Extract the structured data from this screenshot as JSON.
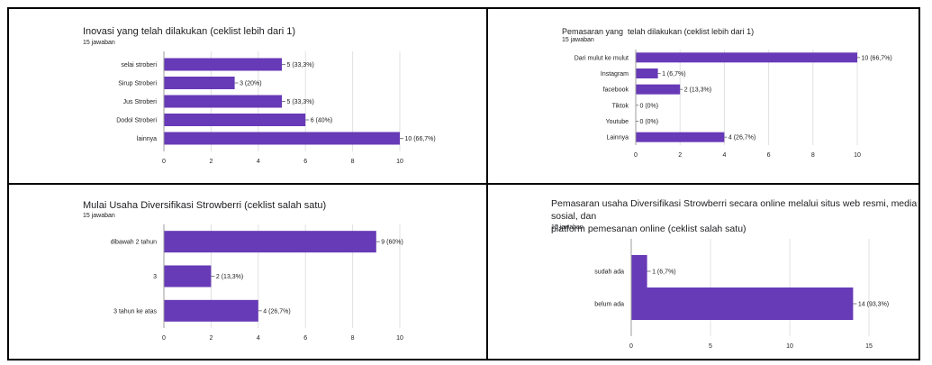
{
  "colors": {
    "bar": "#673ab7",
    "grid": "#e0e0e0",
    "text": "#202124"
  },
  "charts": [
    {
      "title": "Inovasi yang telah dilakukan (ceklist lebih dari 1)",
      "subtitle": "15 jawaban",
      "chart_data": {
        "type": "bar",
        "orientation": "horizontal",
        "categories": [
          "selai stroberi",
          "Sirup Stroberi",
          "Jus Stroberi",
          "Dodol Stroberi",
          "lainnya"
        ],
        "values": [
          5,
          3,
          5,
          6,
          10
        ],
        "data_labels": [
          "5 (33,3%)",
          "3 (20%)",
          "5 (33,3%)",
          "6 (40%)",
          "10 (66,7%)"
        ],
        "xlim": [
          0,
          10
        ],
        "xticks": [
          0,
          2,
          4,
          6,
          8,
          10
        ],
        "grid": true
      }
    },
    {
      "title": "Pemasaran yang  telah dilakukan (ceklist lebih dari 1)",
      "subtitle": "15 jawaban",
      "chart_data": {
        "type": "bar",
        "orientation": "horizontal",
        "categories": [
          "Dari mulut ke mulut",
          "Instagram",
          "facebook",
          "Tiktok",
          "Youtube",
          "Lainnya"
        ],
        "values": [
          10,
          1,
          2,
          0,
          0,
          4
        ],
        "data_labels": [
          "10 (66,7%)",
          "1 (6,7%)",
          "2 (13,3%)",
          "0 (0%)",
          "0 (0%)",
          "4 (26,7%)"
        ],
        "xlim": [
          0,
          10
        ],
        "xticks": [
          0,
          2,
          4,
          6,
          8,
          10
        ],
        "grid": true
      }
    },
    {
      "title": "Mulai Usaha Diversifikasi Strowberri (ceklist salah satu)",
      "subtitle": "15 jawaban",
      "chart_data": {
        "type": "bar",
        "orientation": "horizontal",
        "categories": [
          "dibawah 2 tahun",
          "3",
          "3 tahun ke atas"
        ],
        "values": [
          9,
          2,
          4
        ],
        "data_labels": [
          "9 (60%)",
          "2 (13,3%)",
          "4 (26,7%)"
        ],
        "xlim": [
          0,
          10
        ],
        "xticks": [
          0,
          2,
          4,
          6,
          8,
          10
        ],
        "grid": true
      }
    },
    {
      "title": "Pemasaran usaha Diversifikasi Strowberri secara online melalui situs web resmi, media sosial, dan\nplatform pemesanan online (ceklist salah satu)",
      "subtitle": "15 jawaban",
      "chart_data": {
        "type": "bar",
        "orientation": "horizontal",
        "categories": [
          "sudah ada",
          "belum ada"
        ],
        "values": [
          1,
          14
        ],
        "data_labels": [
          "1 (6,7%)",
          "14 (93,3%)"
        ],
        "xlim": [
          0,
          15
        ],
        "xticks": [
          0,
          5,
          10,
          15
        ],
        "grid": true
      }
    }
  ]
}
